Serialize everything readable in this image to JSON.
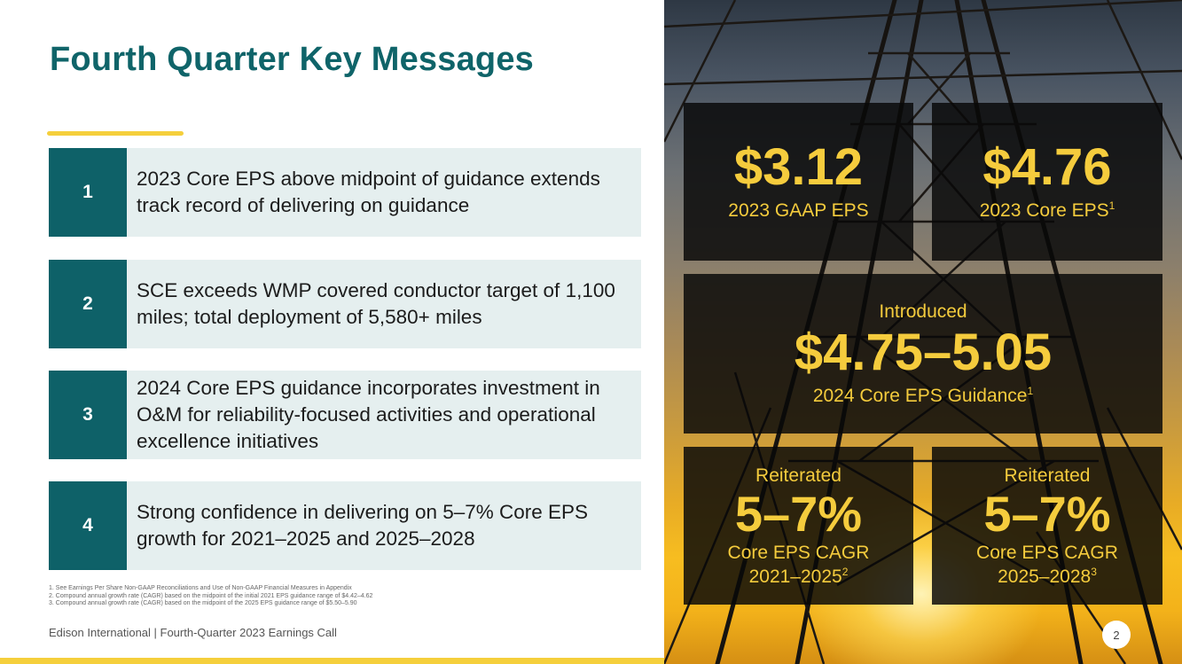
{
  "title": "Fourth Quarter Key Messages",
  "messages": [
    {
      "number": "1",
      "text": "2023 Core EPS above midpoint of guidance extends track record of delivering on guidance"
    },
    {
      "number": "2",
      "text": "SCE exceeds WMP covered conductor target of 1,100 miles; total deployment of 5,580+ miles"
    },
    {
      "number": "3",
      "text": "2024 Core EPS guidance incorporates investment in O&M for reliability-focused activities and operational excellence initiatives"
    },
    {
      "number": "4",
      "text": "Strong confidence in delivering on 5–7% Core EPS growth for 2021–2025 and 2025–2028"
    }
  ],
  "footnotes": [
    "1.  See Earnings Per Share Non-GAAP Reconciliations and Use of Non-GAAP Financial Measures in Appendix",
    "2.  Compound annual growth rate (CAGR) based on the midpoint of the initial 2021 EPS guidance range of $4.42–4.62",
    "3.  Compound annual growth rate (CAGR) based on the midpoint of the 2025 EPS guidance range of $5.50–5.90"
  ],
  "footer": "Edison International |  Fourth-Quarter 2023 Earnings Call",
  "page_number": "2",
  "metrics": {
    "gaap": {
      "value": "$3.12",
      "label": "2023 GAAP EPS"
    },
    "core": {
      "value": "$4.76",
      "label": "2023 Core EPS",
      "sup": "1"
    },
    "guidance": {
      "top": "Introduced",
      "value": "$4.75–5.05",
      "label": "2024 Core EPS Guidance",
      "sup": "1"
    },
    "cagr1": {
      "top": "Reiterated",
      "value": "5–7%",
      "label": "Core EPS CAGR",
      "period": "2021–2025",
      "sup": "2"
    },
    "cagr2": {
      "top": "Reiterated",
      "value": "5–7%",
      "label": "Core EPS CAGR",
      "period": "2025–2028",
      "sup": "3"
    }
  },
  "colors": {
    "teal": "#0e6168",
    "accent_yellow": "#f5cc3d",
    "light_row": "#e5efef"
  }
}
